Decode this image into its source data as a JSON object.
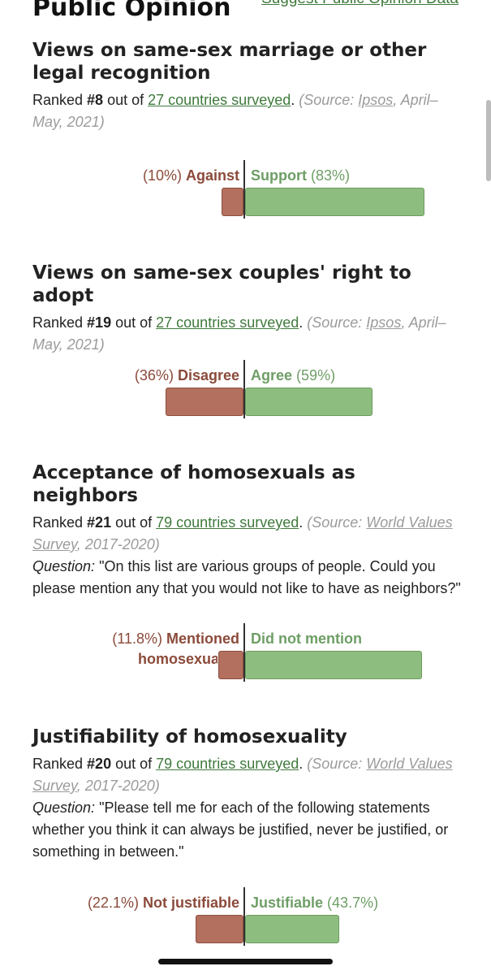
{
  "header": {
    "title": "Public Opinion",
    "suggest_link": "Suggest Public Opinion Data"
  },
  "sections": [
    {
      "title": "Views on same-sex marriage or other legal recognition",
      "rank_prefix": "Ranked ",
      "rank": "#8",
      "rank_mid": " out of ",
      "countries_link": "27 countries surveyed",
      "source_open": " (Source: ",
      "source_name": "Ipsos",
      "source_date": ", April–May, 2021)",
      "left_pct": "(10%)",
      "left_label": "Against",
      "right_label": "Support",
      "right_pct": "(83%)",
      "left_value": 10,
      "right_value": 83
    },
    {
      "title": "Views on same-sex couples' right to adopt",
      "rank_prefix": "Ranked ",
      "rank": "#19",
      "rank_mid": " out of ",
      "countries_link": "27 countries surveyed",
      "source_open": " (Source: ",
      "source_name": "Ipsos",
      "source_date": ", April–May, 2021)",
      "left_pct": "(36%)",
      "left_label": "Disagree",
      "right_label": "Agree",
      "right_pct": "(59%)",
      "left_value": 36,
      "right_value": 59
    },
    {
      "title": "Acceptance of homosexuals as neighbors",
      "rank_prefix": "Ranked ",
      "rank": "#21",
      "rank_mid": " out of ",
      "countries_link": "79 countries surveyed",
      "source_open": " (Source: ",
      "source_name": "World Values Survey",
      "source_date": ", 2017-2020)",
      "question_label": "Question:",
      "question": "\"On this list are various groups of people. Could you please mention any that you would not like to have as neighbors?\"",
      "left_pct": "(11.8%)",
      "left_label": "Mentioned",
      "left_label_wrap": "homosexuals",
      "right_label": "Did not mention",
      "left_value": 11.8
    },
    {
      "title": "Justifiability of homosexuality",
      "rank_prefix": "Ranked ",
      "rank": "#20",
      "rank_mid": " out of ",
      "countries_link": "79 countries surveyed",
      "source_open": " (Source: ",
      "source_name": "World Values Survey",
      "source_date": ", 2017-2020)",
      "question_label": "Question:",
      "question": "\"Please tell me for each of the following statements whether you think it can always be justified, never be justified, or something in between.\"",
      "left_pct": "(22.1%)",
      "left_label": "Not justifiable",
      "right_label": "Justifiable",
      "right_pct": "(43.7%)",
      "left_value": 22.1,
      "right_value": 43.7
    }
  ],
  "colors": {
    "negative": "#b3705f",
    "positive": "#8ebd80",
    "negative_text": "#8b4a3a",
    "positive_text": "#6e9e66",
    "link": "#3f7a3c"
  }
}
